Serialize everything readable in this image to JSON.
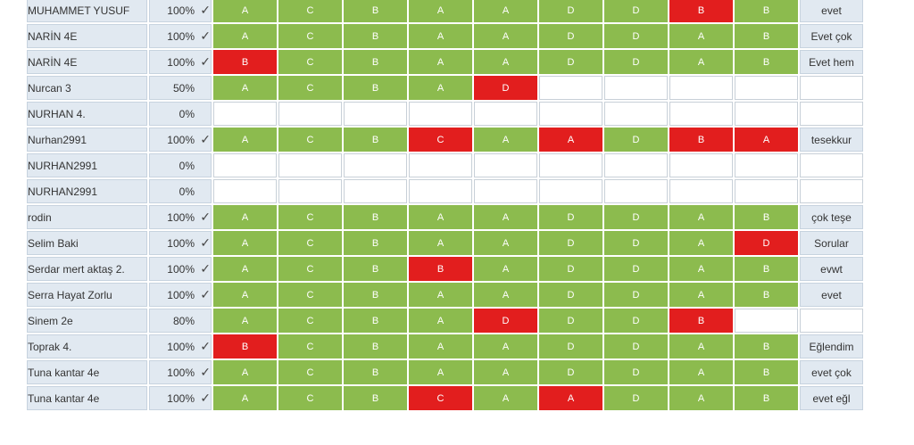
{
  "colors": {
    "correct": "#8cbb4e",
    "wrong": "#e21e1e",
    "name_cell": "#e1e9f1",
    "empty": "#ffffff"
  },
  "icons": {
    "complete": "check-icon"
  },
  "rows": [
    {
      "name": "MUHAMMET YUSUF",
      "percent": "100%",
      "complete": true,
      "answers": [
        [
          "A",
          "c"
        ],
        [
          "C",
          "c"
        ],
        [
          "B",
          "c"
        ],
        [
          "A",
          "c"
        ],
        [
          "A",
          "c"
        ],
        [
          "D",
          "c"
        ],
        [
          "D",
          "c"
        ],
        [
          "B",
          "w"
        ],
        [
          "B",
          "c"
        ]
      ],
      "feedback": "evet"
    },
    {
      "name": "NARİN 4E",
      "percent": "100%",
      "complete": true,
      "answers": [
        [
          "A",
          "c"
        ],
        [
          "C",
          "c"
        ],
        [
          "B",
          "c"
        ],
        [
          "A",
          "c"
        ],
        [
          "A",
          "c"
        ],
        [
          "D",
          "c"
        ],
        [
          "D",
          "c"
        ],
        [
          "A",
          "c"
        ],
        [
          "B",
          "c"
        ]
      ],
      "feedback": "Evet çok"
    },
    {
      "name": "NARİN 4E",
      "percent": "100%",
      "complete": true,
      "answers": [
        [
          "B",
          "w"
        ],
        [
          "C",
          "c"
        ],
        [
          "B",
          "c"
        ],
        [
          "A",
          "c"
        ],
        [
          "A",
          "c"
        ],
        [
          "D",
          "c"
        ],
        [
          "D",
          "c"
        ],
        [
          "A",
          "c"
        ],
        [
          "B",
          "c"
        ]
      ],
      "feedback": "Evet hem"
    },
    {
      "name": "Nurcan 3",
      "percent": "50%",
      "complete": false,
      "answers": [
        [
          "A",
          "c"
        ],
        [
          "C",
          "c"
        ],
        [
          "B",
          "c"
        ],
        [
          "A",
          "c"
        ],
        [
          "D",
          "w"
        ],
        [
          "",
          ""
        ],
        [
          "",
          ""
        ],
        [
          "",
          ""
        ],
        [
          "",
          ""
        ]
      ],
      "feedback": ""
    },
    {
      "name": "NURHAN 4.",
      "percent": "0%",
      "complete": false,
      "answers": [
        [
          "",
          ""
        ],
        [
          "",
          ""
        ],
        [
          "",
          ""
        ],
        [
          "",
          ""
        ],
        [
          "",
          ""
        ],
        [
          "",
          ""
        ],
        [
          "",
          ""
        ],
        [
          "",
          ""
        ],
        [
          "",
          ""
        ]
      ],
      "feedback": ""
    },
    {
      "name": "Nurhan2991",
      "percent": "100%",
      "complete": true,
      "answers": [
        [
          "A",
          "c"
        ],
        [
          "C",
          "c"
        ],
        [
          "B",
          "c"
        ],
        [
          "C",
          "w"
        ],
        [
          "A",
          "c"
        ],
        [
          "A",
          "w"
        ],
        [
          "D",
          "c"
        ],
        [
          "B",
          "w"
        ],
        [
          "A",
          "w"
        ]
      ],
      "feedback": "tesekkur"
    },
    {
      "name": "NURHAN2991",
      "percent": "0%",
      "complete": false,
      "answers": [
        [
          "",
          ""
        ],
        [
          "",
          ""
        ],
        [
          "",
          ""
        ],
        [
          "",
          ""
        ],
        [
          "",
          ""
        ],
        [
          "",
          ""
        ],
        [
          "",
          ""
        ],
        [
          "",
          ""
        ],
        [
          "",
          ""
        ]
      ],
      "feedback": ""
    },
    {
      "name": "NURHAN2991",
      "percent": "0%",
      "complete": false,
      "answers": [
        [
          "",
          ""
        ],
        [
          "",
          ""
        ],
        [
          "",
          ""
        ],
        [
          "",
          ""
        ],
        [
          "",
          ""
        ],
        [
          "",
          ""
        ],
        [
          "",
          ""
        ],
        [
          "",
          ""
        ],
        [
          "",
          ""
        ]
      ],
      "feedback": ""
    },
    {
      "name": "rodin",
      "percent": "100%",
      "complete": true,
      "answers": [
        [
          "A",
          "c"
        ],
        [
          "C",
          "c"
        ],
        [
          "B",
          "c"
        ],
        [
          "A",
          "c"
        ],
        [
          "A",
          "c"
        ],
        [
          "D",
          "c"
        ],
        [
          "D",
          "c"
        ],
        [
          "A",
          "c"
        ],
        [
          "B",
          "c"
        ]
      ],
      "feedback": "çok teşe"
    },
    {
      "name": "Selim Baki",
      "percent": "100%",
      "complete": true,
      "answers": [
        [
          "A",
          "c"
        ],
        [
          "C",
          "c"
        ],
        [
          "B",
          "c"
        ],
        [
          "A",
          "c"
        ],
        [
          "A",
          "c"
        ],
        [
          "D",
          "c"
        ],
        [
          "D",
          "c"
        ],
        [
          "A",
          "c"
        ],
        [
          "D",
          "w"
        ]
      ],
      "feedback": "Sorular"
    },
    {
      "name": "Serdar mert aktaş 2.",
      "percent": "100%",
      "complete": true,
      "answers": [
        [
          "A",
          "c"
        ],
        [
          "C",
          "c"
        ],
        [
          "B",
          "c"
        ],
        [
          "B",
          "w"
        ],
        [
          "A",
          "c"
        ],
        [
          "D",
          "c"
        ],
        [
          "D",
          "c"
        ],
        [
          "A",
          "c"
        ],
        [
          "B",
          "c"
        ]
      ],
      "feedback": "evwt"
    },
    {
      "name": "Serra Hayat Zorlu",
      "percent": "100%",
      "complete": true,
      "answers": [
        [
          "A",
          "c"
        ],
        [
          "C",
          "c"
        ],
        [
          "B",
          "c"
        ],
        [
          "A",
          "c"
        ],
        [
          "A",
          "c"
        ],
        [
          "D",
          "c"
        ],
        [
          "D",
          "c"
        ],
        [
          "A",
          "c"
        ],
        [
          "B",
          "c"
        ]
      ],
      "feedback": "evet"
    },
    {
      "name": "Sinem 2e",
      "percent": "80%",
      "complete": false,
      "answers": [
        [
          "A",
          "c"
        ],
        [
          "C",
          "c"
        ],
        [
          "B",
          "c"
        ],
        [
          "A",
          "c"
        ],
        [
          "D",
          "w"
        ],
        [
          "D",
          "c"
        ],
        [
          "D",
          "c"
        ],
        [
          "B",
          "w"
        ],
        [
          "",
          ""
        ]
      ],
      "feedback": ""
    },
    {
      "name": "Toprak 4.",
      "percent": "100%",
      "complete": true,
      "answers": [
        [
          "B",
          "w"
        ],
        [
          "C",
          "c"
        ],
        [
          "B",
          "c"
        ],
        [
          "A",
          "c"
        ],
        [
          "A",
          "c"
        ],
        [
          "D",
          "c"
        ],
        [
          "D",
          "c"
        ],
        [
          "A",
          "c"
        ],
        [
          "B",
          "c"
        ]
      ],
      "feedback": "Eğlendim"
    },
    {
      "name": "Tuna kantar 4e",
      "percent": "100%",
      "complete": true,
      "answers": [
        [
          "A",
          "c"
        ],
        [
          "C",
          "c"
        ],
        [
          "B",
          "c"
        ],
        [
          "A",
          "c"
        ],
        [
          "A",
          "c"
        ],
        [
          "D",
          "c"
        ],
        [
          "D",
          "c"
        ],
        [
          "A",
          "c"
        ],
        [
          "B",
          "c"
        ]
      ],
      "feedback": "evet çok"
    },
    {
      "name": "Tuna kantar 4e",
      "percent": "100%",
      "complete": true,
      "answers": [
        [
          "A",
          "c"
        ],
        [
          "C",
          "c"
        ],
        [
          "B",
          "c"
        ],
        [
          "C",
          "w"
        ],
        [
          "A",
          "c"
        ],
        [
          "A",
          "w"
        ],
        [
          "D",
          "c"
        ],
        [
          "A",
          "c"
        ],
        [
          "B",
          "c"
        ]
      ],
      "feedback": "evet eğl"
    }
  ]
}
